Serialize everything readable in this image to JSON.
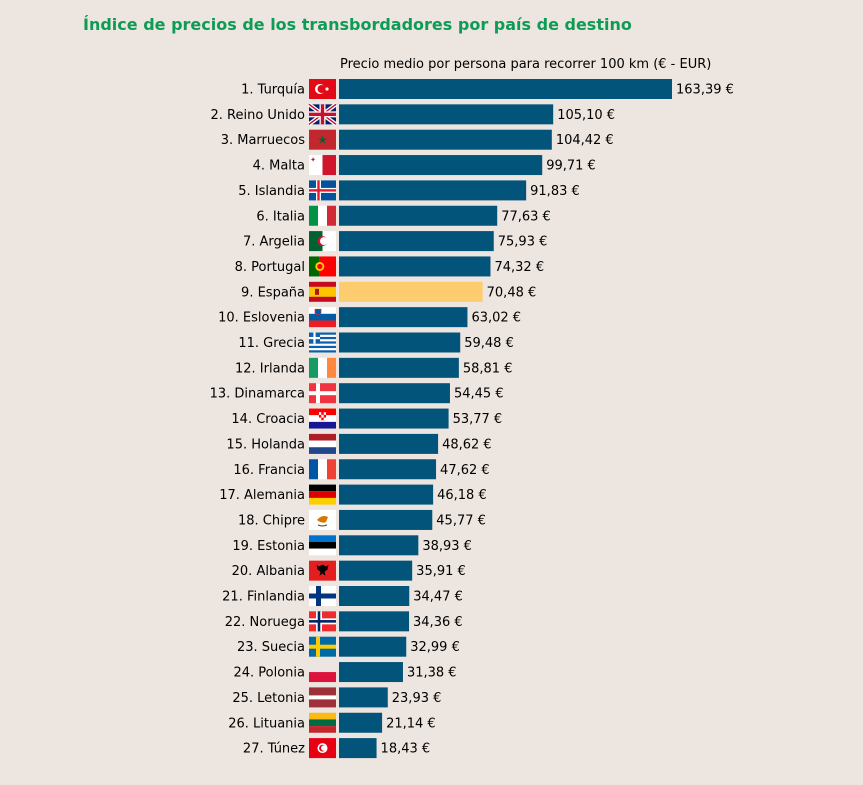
{
  "title": "Índice de precios de los transbordadores por país de destino",
  "chart_data": {
    "type": "bar",
    "orientation": "horizontal",
    "subtitle": "Precio medio por persona para recorrer 100 km (€ - EUR)",
    "xlabel": "",
    "ylabel": "",
    "xlim": [
      0,
      163.39
    ],
    "grid": false,
    "legend": "none",
    "bar_color": "#03547a",
    "highlight_color": "#fdcc6e",
    "highlight_index": 8,
    "categories": [
      "1. Turquía",
      "2. Reino Unido",
      "3. Marruecos",
      "4. Malta",
      "5. Islandia",
      "6. Italia",
      "7. Argelia",
      "8. Portugal",
      "9. España",
      "10. Eslovenia",
      "11. Grecia",
      "12. Irlanda",
      "13. Dinamarca",
      "14. Croacia",
      "15. Holanda",
      "16. Francia",
      "17. Alemania",
      "18. Chipre",
      "19. Estonia",
      "20. Albania",
      "21. Finlandia",
      "22. Noruega",
      "23. Suecia",
      "24. Polonia",
      "25. Letonia",
      "26. Lituania",
      "27. Túnez"
    ],
    "values": [
      163.39,
      105.1,
      104.42,
      99.71,
      91.83,
      77.63,
      75.93,
      74.32,
      70.48,
      63.02,
      59.48,
      58.81,
      54.45,
      53.77,
      48.62,
      47.62,
      46.18,
      45.77,
      38.93,
      35.91,
      34.47,
      34.36,
      32.99,
      31.38,
      23.93,
      21.14,
      18.43
    ],
    "value_labels": [
      "163,39 €",
      "105,10 €",
      "104,42 €",
      "99,71 €",
      "91,83 €",
      "77,63 €",
      "75,93 €",
      "74,32 €",
      "70,48 €",
      "63,02 €",
      "59,48 €",
      "58,81 €",
      "54,45 €",
      "53,77 €",
      "48,62 €",
      "47,62 €",
      "46,18 €",
      "45,77 €",
      "38,93 €",
      "35,91 €",
      "34,47 €",
      "34,36 €",
      "32,99 €",
      "31,38 €",
      "23,93 €",
      "21,14 €",
      "18,43 €"
    ],
    "flags": [
      "turkey-flag",
      "united-kingdom-flag",
      "morocco-flag",
      "malta-flag",
      "iceland-flag",
      "italy-flag",
      "algeria-flag",
      "portugal-flag",
      "spain-flag",
      "slovenia-flag",
      "greece-flag",
      "ireland-flag",
      "denmark-flag",
      "croatia-flag",
      "netherlands-flag",
      "france-flag",
      "germany-flag",
      "cyprus-flag",
      "estonia-flag",
      "albania-flag",
      "finland-flag",
      "norway-flag",
      "sweden-flag",
      "poland-flag",
      "latvia-flag",
      "lithuania-flag",
      "tunisia-flag"
    ]
  }
}
